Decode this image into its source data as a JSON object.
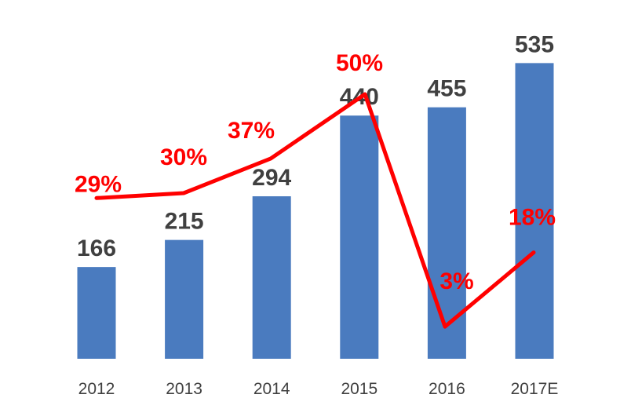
{
  "chart_data": {
    "type": "bar",
    "categories": [
      "2012",
      "2013",
      "2014",
      "2015",
      "2016",
      "2017E"
    ],
    "bar_series": {
      "values": [
        166,
        215,
        294,
        440,
        455,
        535
      ],
      "labels": [
        "166",
        "215",
        "294",
        "440",
        "455",
        "535"
      ],
      "color": "#4a7bbf"
    },
    "line_series": {
      "type": "line",
      "values": [
        29,
        30,
        37,
        50,
        3,
        18
      ],
      "labels": [
        "29%",
        "30%",
        "37%",
        "50%",
        "3%",
        "18%"
      ],
      "unit": "%",
      "color": "#ff0000"
    },
    "title": "",
    "xlabel": "",
    "ylabel": "",
    "grid": false,
    "legend": "none"
  }
}
